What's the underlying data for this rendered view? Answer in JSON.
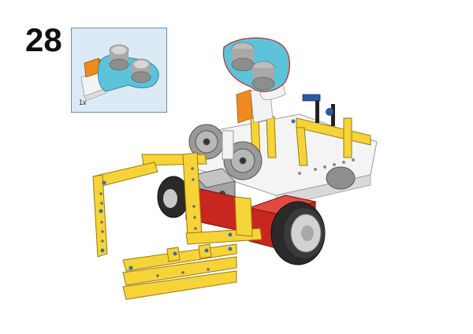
{
  "step": {
    "number": "28"
  },
  "callout": {
    "quantity": "1x",
    "part": "ultrasonic-sensor",
    "part_color": "#5cc3da"
  },
  "model": {
    "description_colors": {
      "beam": "#f6d437",
      "sensor": "#5cc3da",
      "red_block": "#c8261f",
      "tire": "#2a2a2a",
      "hub": "#c8c8c8",
      "gear": "#9a9a9a",
      "frame": "#f4f4f4"
    }
  }
}
